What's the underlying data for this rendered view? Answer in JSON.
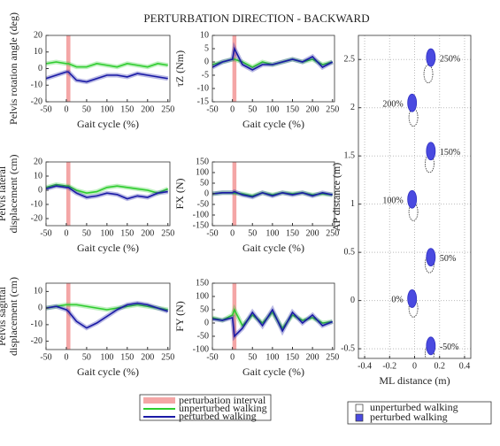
{
  "title": "PERTURBATION DIRECTION - BACKWARD",
  "chart_data": [
    {
      "type": "line",
      "ylabel": [
        "Pelvis rotation angle (deg)"
      ],
      "xlabel": "Gait cycle (%)",
      "x": [
        -50,
        -25,
        0,
        5,
        25,
        50,
        75,
        100,
        125,
        150,
        175,
        200,
        225,
        250
      ],
      "xlim": [
        -50,
        255
      ],
      "xticks": [
        -50,
        0,
        50,
        100,
        150,
        200,
        250
      ],
      "ylim": [
        -20,
        20
      ],
      "yticks": [
        -20,
        -10,
        0,
        10,
        20
      ],
      "band": {
        "name": "perturbation interval",
        "range": [
          0,
          10
        ],
        "color": "#f4a6a6"
      },
      "series": [
        {
          "name": "unperturbed walking",
          "color": "#2ecc2e",
          "values": [
            3,
            4,
            3,
            3,
            1,
            1,
            3,
            2,
            1,
            3,
            2,
            1,
            3,
            2
          ]
        },
        {
          "name": "perturbed walking",
          "color": "#1a1aa6",
          "values": [
            -6,
            -4,
            -2,
            -2,
            -7,
            -8,
            -6,
            -4,
            -4,
            -5,
            -3,
            -4,
            -5,
            -6
          ]
        }
      ]
    },
    {
      "type": "line",
      "ylabel": [
        "τZ (Nm)"
      ],
      "xlabel": "Gait cycle (%)",
      "x": [
        -50,
        -25,
        0,
        5,
        25,
        50,
        75,
        100,
        125,
        150,
        175,
        200,
        225,
        250
      ],
      "xlim": [
        -50,
        255
      ],
      "xticks": [
        -50,
        0,
        50,
        100,
        150,
        200,
        250
      ],
      "ylim": [
        -15,
        10
      ],
      "yticks": [
        -15,
        -10,
        -5,
        0,
        5,
        10
      ],
      "band": {
        "range": [
          0,
          10
        ],
        "color": "#f4a6a6"
      },
      "series": [
        {
          "color": "#2ecc2e",
          "values": [
            -1,
            0,
            1,
            1,
            0,
            -2,
            0,
            -1,
            0,
            1,
            0,
            1,
            -1,
            0
          ]
        },
        {
          "color": "#1a1aa6",
          "values": [
            -2,
            0,
            1,
            5,
            -1,
            -3,
            -1,
            -1,
            0,
            1,
            0,
            2,
            -2,
            0
          ]
        }
      ]
    },
    {
      "type": "line",
      "ylabel": [
        "Pelvis lateral",
        "displacement (cm)"
      ],
      "xlabel": "Gait cycle (%)",
      "x": [
        -50,
        -25,
        0,
        5,
        25,
        50,
        75,
        100,
        125,
        150,
        175,
        200,
        225,
        250
      ],
      "xlim": [
        -50,
        255
      ],
      "xticks": [
        -50,
        0,
        50,
        100,
        150,
        200,
        250
      ],
      "ylim": [
        -25,
        20
      ],
      "yticks": [
        -20,
        -10,
        0,
        10,
        20
      ],
      "band": {
        "range": [
          0,
          10
        ],
        "color": "#f4a6a6"
      },
      "series": [
        {
          "color": "#2ecc2e",
          "values": [
            2,
            4,
            3,
            3,
            0,
            -2,
            -1,
            2,
            3,
            2,
            1,
            0,
            -2,
            1
          ]
        },
        {
          "color": "#1a1aa6",
          "values": [
            1,
            3,
            2,
            2,
            -2,
            -5,
            -4,
            -2,
            -3,
            -6,
            -4,
            -5,
            -2,
            -1
          ]
        }
      ]
    },
    {
      "type": "line",
      "ylabel": [
        "FX (N)"
      ],
      "xlabel": "Gait cycle (%)",
      "x": [
        -50,
        -25,
        0,
        5,
        25,
        50,
        75,
        100,
        125,
        150,
        175,
        200,
        225,
        250
      ],
      "xlim": [
        -50,
        255
      ],
      "xticks": [
        -50,
        0,
        50,
        100,
        150,
        200,
        250
      ],
      "ylim": [
        -150,
        150
      ],
      "yticks": [
        -150,
        -100,
        -50,
        0,
        50,
        100,
        150
      ],
      "band": {
        "range": [
          0,
          10
        ],
        "color": "#f4a6a6"
      },
      "series": [
        {
          "color": "#2ecc2e",
          "values": [
            0,
            5,
            5,
            3,
            0,
            -10,
            5,
            -5,
            5,
            0,
            5,
            -5,
            0,
            -5
          ]
        },
        {
          "color": "#1a1aa6",
          "values": [
            0,
            5,
            5,
            10,
            -5,
            -15,
            5,
            -10,
            5,
            -5,
            5,
            -10,
            5,
            -5
          ]
        }
      ]
    },
    {
      "type": "line",
      "ylabel": [
        "Pelvis sagittal",
        "displacement (cm)"
      ],
      "xlabel": "Gait cycle (%)",
      "x": [
        -50,
        -25,
        0,
        5,
        25,
        50,
        75,
        100,
        125,
        150,
        175,
        200,
        225,
        250
      ],
      "xlim": [
        -50,
        255
      ],
      "xticks": [
        -50,
        0,
        50,
        100,
        150,
        200,
        250
      ],
      "ylim": [
        -25,
        15
      ],
      "yticks": [
        -20,
        -10,
        0,
        10
      ],
      "band": {
        "range": [
          0,
          10
        ],
        "color": "#f4a6a6"
      },
      "series": [
        {
          "color": "#2ecc2e",
          "values": [
            0,
            1,
            2,
            2,
            2,
            1,
            0,
            -1,
            0,
            1,
            2,
            1,
            0,
            -1
          ]
        },
        {
          "color": "#1a1aa6",
          "values": [
            0,
            1,
            -1,
            -2,
            -8,
            -12,
            -9,
            -5,
            -1,
            2,
            3,
            2,
            0,
            -2
          ]
        }
      ]
    },
    {
      "type": "line",
      "ylabel": [
        "FY (N)"
      ],
      "xlabel": "Gait cycle (%)",
      "x": [
        -50,
        -25,
        0,
        5,
        25,
        50,
        75,
        100,
        125,
        150,
        175,
        200,
        225,
        250
      ],
      "xlim": [
        -50,
        255
      ],
      "xticks": [
        -50,
        0,
        50,
        100,
        150,
        200,
        250
      ],
      "ylim": [
        -100,
        150
      ],
      "yticks": [
        -100,
        -50,
        0,
        50,
        100,
        150
      ],
      "band": {
        "range": [
          0,
          10
        ],
        "color": "#f4a6a6"
      },
      "series": [
        {
          "color": "#2ecc2e",
          "values": [
            20,
            10,
            30,
            50,
            -10,
            30,
            0,
            40,
            -20,
            30,
            10,
            20,
            0,
            5
          ]
        },
        {
          "color": "#1a1aa6",
          "values": [
            15,
            10,
            20,
            -50,
            -20,
            40,
            -10,
            50,
            -30,
            40,
            0,
            30,
            -10,
            5
          ]
        }
      ]
    },
    {
      "type": "scatter",
      "ylabel": [
        "AP distance (m)"
      ],
      "xlabel": "ML distance (m)",
      "xlim": [
        -0.45,
        0.45
      ],
      "xticks": [
        -0.4,
        -0.2,
        0,
        0.2,
        0.4
      ],
      "ylim": [
        -0.6,
        2.75
      ],
      "yticks": [
        -0.5,
        0,
        0.5,
        1,
        1.5,
        2,
        2.5
      ],
      "grid": true,
      "series": [
        {
          "name": "unperturbed walking",
          "color": "#ffffff",
          "x": [
            0.11,
            -0.01,
            0.12,
            -0.01,
            0.12,
            -0.01,
            0.12
          ],
          "values": [
            2.35,
            1.9,
            1.42,
            0.92,
            0.38,
            -0.08,
            -0.55
          ]
        },
        {
          "name": "perturbed walking",
          "color": "#4a4ae0",
          "x": [
            0.13,
            -0.02,
            0.13,
            -0.02,
            0.13,
            -0.02,
            0.13
          ],
          "values": [
            2.52,
            2.05,
            1.55,
            1.05,
            0.45,
            0.02,
            -0.47
          ],
          "point_labels": [
            "250%",
            "200%",
            "150%",
            "100%",
            "50%",
            "0%",
            "-50%"
          ]
        }
      ]
    }
  ]
}
